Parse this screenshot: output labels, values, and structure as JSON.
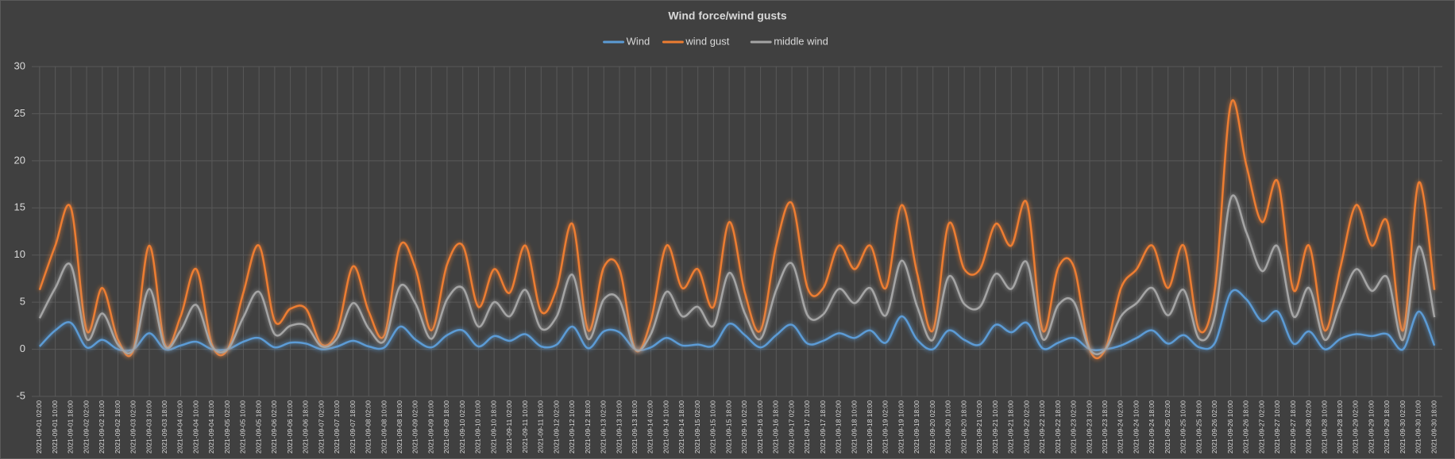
{
  "chart_data": {
    "type": "line",
    "title": "Wind force/wind gusts",
    "categories": [
      "2021-09-01 02:00",
      "2021-09-01 10:00",
      "2021-09-01 18:00",
      "2021-09-02 02:00",
      "2021-09-02 10:00",
      "2021-09-02 18:00",
      "2021-09-03 02:00",
      "2021-09-03 10:00",
      "2021-09-03 18:00",
      "2021-09-04 02:00",
      "2021-09-04 10:00",
      "2021-09-04 18:00",
      "2021-09-05 02:00",
      "2021-09-05 10:00",
      "2021-09-05 18:00",
      "2021-09-06 02:00",
      "2021-09-06 10:00",
      "2021-09-06 18:00",
      "2021-09-07 02:00",
      "2021-09-07 10:00",
      "2021-09-07 18:00",
      "2021-09-08 02:00",
      "2021-09-08 10:00",
      "2021-09-08 18:00",
      "2021-09-09 02:00",
      "2021-09-09 10:00",
      "2021-09-09 18:00",
      "2021-09-10 02:00",
      "2021-09-10 10:00",
      "2021-09-10 18:00",
      "2021-09-11 02:00",
      "2021-09-11 10:00",
      "2021-09-11 18:00",
      "2021-09-12 02:00",
      "2021-09-12 10:00",
      "2021-09-12 18:00",
      "2021-09-13 02:00",
      "2021-09-13 10:00",
      "2021-09-13 18:00",
      "2021-09-14 02:00",
      "2021-09-14 10:00",
      "2021-09-14 18:00",
      "2021-09-15 02:00",
      "2021-09-15 10:00",
      "2021-09-15 18:00",
      "2021-09-16 02:00",
      "2021-09-16 10:00",
      "2021-09-16 18:00",
      "2021-09-17 02:00",
      "2021-09-17 10:00",
      "2021-09-17 18:00",
      "2021-09-18 02:00",
      "2021-09-18 10:00",
      "2021-09-18 18:00",
      "2021-09-19 02:00",
      "2021-09-19 10:00",
      "2021-09-19 18:00",
      "2021-09-20 02:00",
      "2021-09-20 10:00",
      "2021-09-20 18:00",
      "2021-09-21 02:00",
      "2021-09-21 10:00",
      "2021-09-21 18:00",
      "2021-09-22 02:00",
      "2021-09-22 10:00",
      "2021-09-22 18:00",
      "2021-09-23 02:00",
      "2021-09-23 10:00",
      "2021-09-23 18:00",
      "2021-09-24 02:00",
      "2021-09-24 10:00",
      "2021-09-24 18:00",
      "2021-09-25 02:00",
      "2021-09-25 10:00",
      "2021-09-25 18:00",
      "2021-09-26 02:00",
      "2021-09-26 10:00",
      "2021-09-26 18:00",
      "2021-09-27 02:00",
      "2021-09-27 10:00",
      "2021-09-27 18:00",
      "2021-09-28 02:00",
      "2021-09-28 10:00",
      "2021-09-28 18:00",
      "2021-09-29 02:00",
      "2021-09-29 10:00",
      "2021-09-29 18:00",
      "2021-09-30 02:00",
      "2021-09-30 10:00",
      "2021-09-30 18:00"
    ],
    "series": [
      {
        "name": "Wind",
        "color": "#5b9bd5",
        "values": [
          0.3,
          2,
          2.8,
          0.2,
          1,
          0,
          0,
          1.7,
          0,
          0.4,
          0.8,
          0,
          0,
          0.8,
          1.2,
          0.2,
          0.7,
          0.6,
          0,
          0.3,
          0.9,
          0.3,
          0.2,
          2.4,
          1,
          0.2,
          1.5,
          2,
          0.3,
          1.4,
          0.9,
          1.6,
          0.3,
          0.5,
          2.4,
          0.1,
          1.9,
          1.8,
          0,
          0.2,
          1.2,
          0.4,
          0.5,
          0.4,
          2.7,
          1.5,
          0.2,
          1.5,
          2.6,
          0.6,
          0.9,
          1.7,
          1.2,
          2,
          0.7,
          3.5,
          1,
          0,
          2,
          1,
          0.5,
          2.6,
          1.8,
          2.8,
          0.1,
          0.7,
          1.2,
          0,
          0,
          0.4,
          1.2,
          2,
          0.6,
          1.5,
          0.2,
          0.7,
          6,
          5.3,
          3,
          4,
          0.6,
          1.9,
          0,
          1.1,
          1.6,
          1.4,
          1.6,
          0,
          4,
          0.4
        ]
      },
      {
        "name": "wind gust",
        "color": "#ed7d31",
        "values": [
          6.3,
          11,
          15,
          2,
          6.5,
          1,
          0,
          11,
          0.5,
          3.5,
          8.5,
          0.5,
          0,
          6,
          11,
          3,
          4.3,
          4.3,
          0.5,
          2,
          8.8,
          4,
          1.5,
          11,
          8.5,
          2,
          9,
          11,
          4.5,
          8.5,
          6,
          11,
          4,
          6.5,
          13.3,
          2,
          8.7,
          8.5,
          0,
          3,
          11,
          6.5,
          8.5,
          4.5,
          13.5,
          6,
          2,
          11,
          15.5,
          6.5,
          6.5,
          11,
          8.5,
          11,
          6.5,
          15.3,
          8,
          2,
          13.3,
          8.5,
          8.5,
          13.3,
          11,
          15.5,
          2,
          8.7,
          8.7,
          0,
          0,
          6.5,
          8.5,
          11,
          6.5,
          11,
          2,
          6.5,
          26,
          19.5,
          13.5,
          17.8,
          6.3,
          11,
          2,
          8.7,
          15.3,
          11,
          13.5,
          2,
          17.7,
          6.3
        ]
      },
      {
        "name": "middle wind",
        "color": "#a5a5a5",
        "values": [
          3.3,
          6.5,
          8.9,
          1.1,
          3.8,
          0.5,
          0,
          6.4,
          0.3,
          2,
          4.7,
          0.3,
          0,
          3.4,
          6.1,
          1.6,
          2.5,
          2.5,
          0.3,
          1.2,
          4.9,
          2.2,
          0.9,
          6.7,
          4.8,
          1.1,
          5.3,
          6.5,
          2.4,
          5,
          3.5,
          6.3,
          2.2,
          3.5,
          7.9,
          1.1,
          5.3,
          5.2,
          0,
          1.6,
          6.1,
          3.5,
          4.5,
          2.5,
          8.1,
          3.8,
          1.1,
          6.3,
          9.1,
          3.6,
          3.7,
          6.4,
          4.9,
          6.5,
          3.6,
          9.4,
          4.5,
          1,
          7.7,
          4.8,
          4.5,
          8,
          6.4,
          9.2,
          1.1,
          4.7,
          5,
          0,
          0,
          3.5,
          4.9,
          6.5,
          3.6,
          6.3,
          1.1,
          3.6,
          16,
          12.4,
          8.3,
          10.9,
          3.5,
          6.5,
          1,
          4.9,
          8.5,
          6.2,
          7.6,
          1,
          10.9,
          3.4
        ]
      }
    ],
    "ylim": [
      -5,
      30
    ],
    "yticks": [
      -5,
      0,
      5,
      10,
      15,
      20,
      25,
      30
    ],
    "grid": true,
    "legend": "top"
  }
}
